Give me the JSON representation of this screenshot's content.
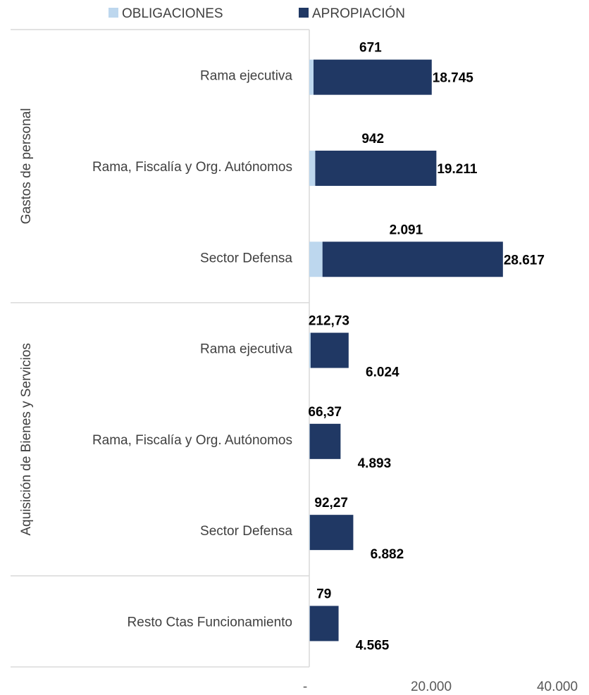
{
  "chart_data": {
    "type": "bar",
    "orientation": "horizontal",
    "stacked": true,
    "legend": {
      "placement": "top",
      "entries": [
        {
          "key": "obligaciones",
          "label": "OBLIGACIONES",
          "color": "#bdd7ee"
        },
        {
          "key": "apropiacion",
          "label": "APROPIACIÓN",
          "color": "#203864"
        }
      ]
    },
    "groups": [
      {
        "label": "Gastos de personal",
        "categories": [
          {
            "label": "Rama ejecutiva",
            "obligaciones": 671,
            "apropiacion": 18745,
            "obligaciones_label": "671",
            "apropiacion_label": "18.745"
          },
          {
            "label": "Rama, Fiscalía y Org. Autónomos",
            "obligaciones": 942,
            "apropiacion": 19211,
            "obligaciones_label": "942",
            "apropiacion_label": "19.211"
          },
          {
            "label": "Sector Defensa",
            "obligaciones": 2091,
            "apropiacion": 28617,
            "obligaciones_label": "2.091",
            "apropiacion_label": "28.617"
          }
        ]
      },
      {
        "label": "Aquisición de Bienes y Servicios",
        "categories": [
          {
            "label": "Rama ejecutiva",
            "obligaciones": 212.73,
            "apropiacion": 6024,
            "obligaciones_label": "212,73",
            "apropiacion_label": "6.024"
          },
          {
            "label": "Rama, Fiscalía y Org. Autónomos",
            "obligaciones": 66.37,
            "apropiacion": 4893,
            "obligaciones_label": "66,37",
            "apropiacion_label": "4.893"
          },
          {
            "label": "Sector Defensa",
            "obligaciones": 92.27,
            "apropiacion": 6882,
            "obligaciones_label": "92,27",
            "apropiacion_label": "6.882"
          }
        ]
      },
      {
        "label": "",
        "categories": [
          {
            "label": "Resto Ctas Funcionamiento",
            "obligaciones": 79,
            "apropiacion": 4565,
            "obligaciones_label": "79",
            "apropiacion_label": "4.565"
          }
        ]
      }
    ],
    "x_axis": {
      "min": 0,
      "max": 40000,
      "ticks": [
        {
          "value": 0,
          "label": "-"
        },
        {
          "value": 20000,
          "label": "20.000"
        },
        {
          "value": 40000,
          "label": "40.000"
        }
      ]
    },
    "grid": false,
    "title": "",
    "xlabel": "",
    "ylabel": ""
  }
}
